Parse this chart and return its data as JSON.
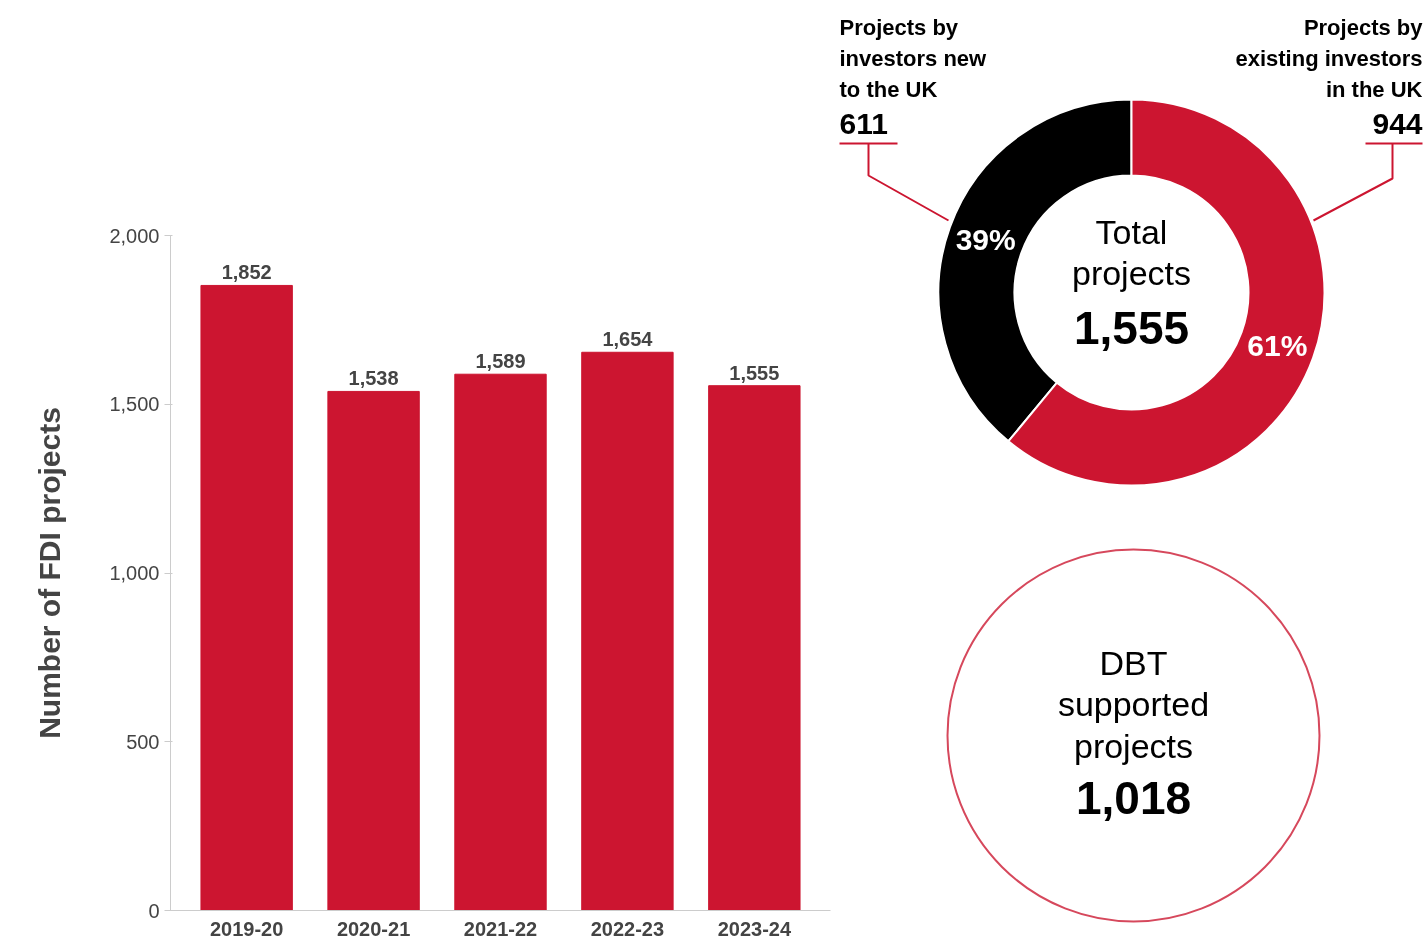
{
  "chart_data": [
    {
      "type": "bar",
      "categories": [
        "2019-20",
        "2020-21",
        "2021-22",
        "2022-23",
        "2023-24"
      ],
      "values": [
        1852,
        1538,
        1589,
        1654,
        1555
      ],
      "color": "#cc1530",
      "ylim": [
        0,
        2000
      ],
      "yticks": [
        0,
        500,
        {
          "value": 1000,
          "label": "1,000"
        },
        {
          "value": 1500,
          "label": "1,500"
        },
        {
          "value": 2000,
          "label": "2,000"
        }
      ],
      "ylabel": "Number of FDI projects",
      "value_labels": [
        "1,852",
        "1,538",
        "1,589",
        "1,654",
        "1,555"
      ]
    },
    {
      "type": "donut",
      "title": "Total projects",
      "annotations": [
        "1,555",
        "611",
        "944"
      ],
      "categories": [
        "Projects by investors new to the UK",
        "Projects by existing investors in the UK"
      ],
      "values": [
        39,
        61
      ],
      "colors": [
        "#000000",
        "#cc1530"
      ],
      "value_labels": [
        "39%",
        "61%"
      ]
    },
    {
      "type": "other",
      "title": "DBT supported projects",
      "annotations": [
        "1,018"
      ]
    }
  ]
}
